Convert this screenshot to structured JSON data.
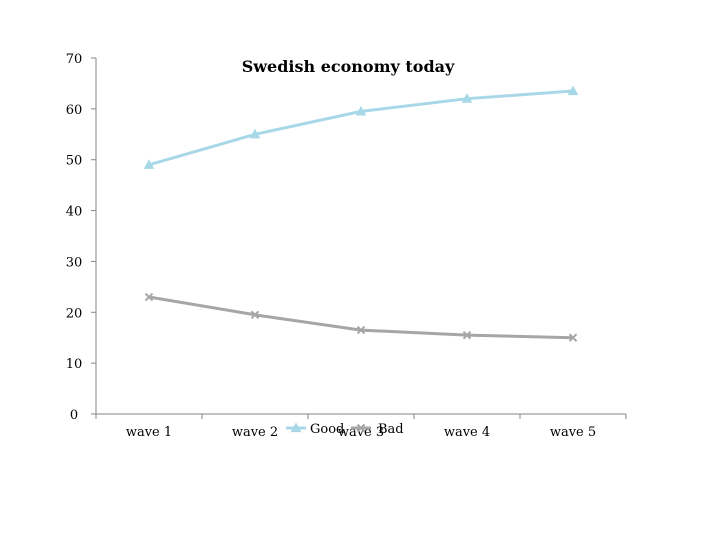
{
  "chart_data": {
    "type": "line",
    "title": "Swedish economy today",
    "xlabel": "",
    "ylabel": "",
    "categories": [
      "wave 1",
      "wave 2",
      "wave 3",
      "wave 4",
      "wave 5"
    ],
    "y_ticks": [
      0,
      10,
      20,
      30,
      40,
      50,
      60,
      70
    ],
    "ylim": [
      0,
      70
    ],
    "grid": false,
    "legend_position": "bottom",
    "series": [
      {
        "name": "Good",
        "marker": "triangle",
        "color": "#a8d8e8",
        "values": [
          49,
          55,
          59.5,
          62,
          63.5
        ]
      },
      {
        "name": "Bad",
        "marker": "x",
        "color": "#a6a6a6",
        "values": [
          23,
          19.5,
          16.5,
          15.5,
          15
        ]
      }
    ]
  }
}
